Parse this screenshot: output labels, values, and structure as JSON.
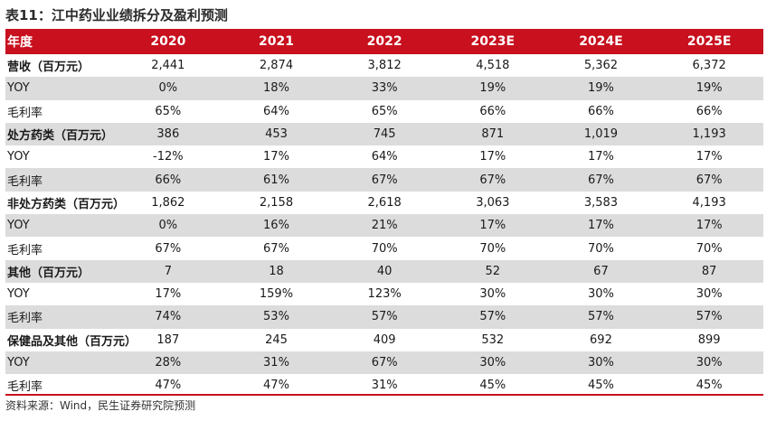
{
  "title": "表11：江中药业业绩拆分及盈利预测",
  "table": {
    "headers": [
      "年度",
      "2020",
      "2021",
      "2022",
      "2023E",
      "2024E",
      "2025E"
    ],
    "rows": [
      {
        "label": "营收（百万元）",
        "values": [
          "2,441",
          "2,874",
          "3,812",
          "4,518",
          "5,362",
          "6,372"
        ],
        "section": true,
        "shade": false
      },
      {
        "label": "YOY",
        "values": [
          "0%",
          "18%",
          "33%",
          "19%",
          "19%",
          "19%"
        ],
        "section": false,
        "shade": true
      },
      {
        "label": "毛利率",
        "values": [
          "65%",
          "64%",
          "65%",
          "66%",
          "66%",
          "66%"
        ],
        "section": false,
        "shade": false
      },
      {
        "label": "处方药类（百万元）",
        "values": [
          "386",
          "453",
          "745",
          "871",
          "1,019",
          "1,193"
        ],
        "section": true,
        "shade": true
      },
      {
        "label": "YOY",
        "values": [
          "-12%",
          "17%",
          "64%",
          "17%",
          "17%",
          "17%"
        ],
        "section": false,
        "shade": false
      },
      {
        "label": "毛利率",
        "values": [
          "66%",
          "61%",
          "67%",
          "67%",
          "67%",
          "67%"
        ],
        "section": false,
        "shade": true
      },
      {
        "label": "非处方药类（百万元）",
        "values": [
          "1,862",
          "2,158",
          "2,618",
          "3,063",
          "3,583",
          "4,193"
        ],
        "section": true,
        "shade": false
      },
      {
        "label": "YOY",
        "values": [
          "0%",
          "16%",
          "21%",
          "17%",
          "17%",
          "17%"
        ],
        "section": false,
        "shade": true
      },
      {
        "label": "毛利率",
        "values": [
          "67%",
          "67%",
          "70%",
          "70%",
          "70%",
          "70%"
        ],
        "section": false,
        "shade": false
      },
      {
        "label": "其他（百万元）",
        "values": [
          "7",
          "18",
          "40",
          "52",
          "67",
          "87"
        ],
        "section": true,
        "shade": true
      },
      {
        "label": "YOY",
        "values": [
          "17%",
          "159%",
          "123%",
          "30%",
          "30%",
          "30%"
        ],
        "section": false,
        "shade": false
      },
      {
        "label": "毛利率",
        "values": [
          "74%",
          "53%",
          "57%",
          "57%",
          "57%",
          "57%"
        ],
        "section": false,
        "shade": true
      },
      {
        "label": "保健品及其他（百万元）",
        "values": [
          "187",
          "245",
          "409",
          "532",
          "692",
          "899"
        ],
        "section": true,
        "shade": false
      },
      {
        "label": "YOY",
        "values": [
          "28%",
          "31%",
          "67%",
          "30%",
          "30%",
          "30%"
        ],
        "section": false,
        "shade": true
      },
      {
        "label": "毛利率",
        "values": [
          "47%",
          "47%",
          "31%",
          "45%",
          "45%",
          "45%"
        ],
        "section": false,
        "shade": false
      }
    ]
  },
  "source": "资料来源：Wind，民生证券研究院预测",
  "colors": {
    "header_bg": "#c8101e",
    "header_text": "#ffffff",
    "shade": "#dcdcdc"
  }
}
